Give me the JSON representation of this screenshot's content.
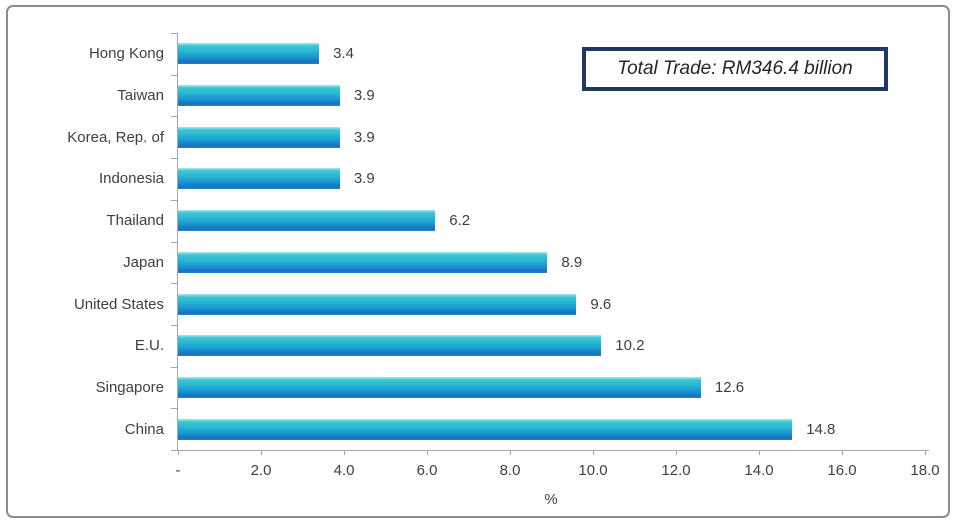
{
  "annotation": {
    "text": "Total Trade: RM346.4 billion",
    "border_color": "#1f3864"
  },
  "chart_data": {
    "type": "bar",
    "orientation": "horizontal",
    "title": "",
    "categories": [
      "Hong Kong",
      "Taiwan",
      "Korea, Rep. of",
      "Indonesia",
      "Thailand",
      "Japan",
      "United States",
      "E.U.",
      "Singapore",
      "China"
    ],
    "values": [
      3.4,
      3.9,
      3.9,
      3.9,
      6.2,
      8.9,
      9.6,
      10.2,
      12.6,
      14.8
    ],
    "value_labels": [
      "3.4",
      "3.9",
      "3.9",
      "3.9",
      "6.2",
      "8.9",
      "9.6",
      "10.2",
      "12.6",
      "14.8"
    ],
    "xlabel": "%",
    "ylabel": "",
    "xlim": [
      0,
      18
    ],
    "x_ticks": [
      {
        "value": 0,
        "label": "-"
      },
      {
        "value": 2,
        "label": "2.0"
      },
      {
        "value": 4,
        "label": "4.0"
      },
      {
        "value": 6,
        "label": "6.0"
      },
      {
        "value": 8,
        "label": "8.0"
      },
      {
        "value": 10,
        "label": "10.0"
      },
      {
        "value": 12,
        "label": "12.0"
      },
      {
        "value": 14,
        "label": "14.0"
      },
      {
        "value": 16,
        "label": "16.0"
      },
      {
        "value": 18,
        "label": "18.0"
      }
    ],
    "grid": false,
    "legend": "none",
    "annotation": "Total Trade: RM346.4 billion",
    "bar_gradient": [
      "#a9eaee",
      "#3cc6d3",
      "#28b8d2",
      "#1a98d2",
      "#1572c0",
      "#2e80c8"
    ],
    "axis_color": "#a6a6a6",
    "text_color": "#3f3f3f"
  }
}
